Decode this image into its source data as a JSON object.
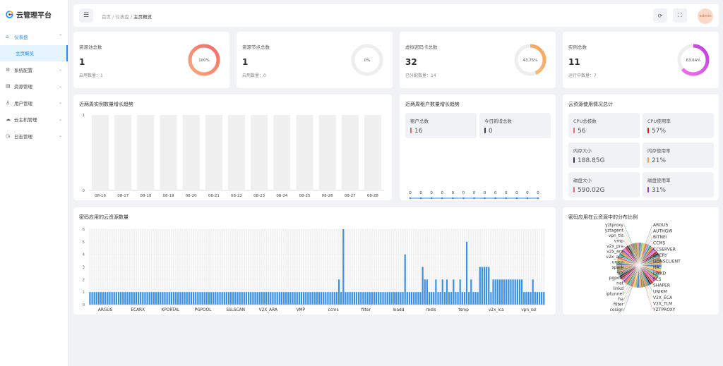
{
  "app": {
    "title": "云管理平台"
  },
  "sidebar": {
    "items": [
      {
        "label": "仪表盘",
        "icon": "home-icon",
        "active": true,
        "arrow": "^"
      },
      {
        "label": "主页概览",
        "sub": true
      },
      {
        "label": "系统配置",
        "icon": "gear-icon",
        "arrow": "v"
      },
      {
        "label": "资源管理",
        "icon": "document-icon",
        "arrow": "v"
      },
      {
        "label": "用户管理",
        "icon": "users-icon",
        "arrow": "v"
      },
      {
        "label": "云主机管理",
        "icon": "cloud-icon",
        "arrow": "v"
      },
      {
        "label": "日志管理",
        "icon": "log-icon",
        "arrow": "v"
      }
    ]
  },
  "header": {
    "breadcrumb": [
      "首页",
      "仪表盘",
      "主页概览"
    ],
    "user": "admin"
  },
  "stats": [
    {
      "title": "资源池总数",
      "value": "1",
      "sub": "启用数量：1",
      "percent": 100,
      "label": "100%",
      "color": "#f46a6a",
      "color2": "#f8aa7a"
    },
    {
      "title": "资源节点总数",
      "value": "1",
      "sub": "启用数量：0",
      "percent": 0,
      "label": "0%",
      "color": "#999",
      "color2": "#999"
    },
    {
      "title": "虚拟密码卡总数",
      "value": "32",
      "sub": "已分配数量：14",
      "percent": 43.75,
      "label": "43.75%",
      "color": "#f3a65c",
      "color2": "#f7c48e"
    },
    {
      "title": "实例总数",
      "value": "11",
      "sub": "运行中数量：7",
      "percent": 63.64,
      "label": "63.64%",
      "color": "#c03ce0",
      "color2": "#f176e8"
    }
  ],
  "instance_chart": {
    "title": "近两周实例数量增长趋势"
  },
  "tenant": {
    "title": "近两周租户数量增长趋势",
    "tiles": [
      {
        "label": "租户总数",
        "value": "16",
        "color": "#e06b6b"
      },
      {
        "label": "今日新增总数",
        "value": "0",
        "color": "#333a4d"
      }
    ]
  },
  "usage": {
    "title": "云资源使用情况总计",
    "tiles": [
      {
        "label": "CPU总核数",
        "value": "56",
        "color": "#e06b6b"
      },
      {
        "label": "CPU使用率",
        "value": "57%",
        "color": "#e8101a"
      },
      {
        "label": "内存大小",
        "value": "188.85G",
        "color": "#333a4d"
      },
      {
        "label": "内存使用率",
        "value": "21%",
        "color": "#f5a623"
      },
      {
        "label": "磁盘大小",
        "value": "590.02G",
        "color": "#e06b6b"
      },
      {
        "label": "磁盘使用率",
        "value": "31%",
        "color": "#9b30d9"
      }
    ]
  },
  "app_chart": {
    "title": "密码应用的云资源数量"
  },
  "pie": {
    "title": "密码应用在云资源中的分布比例"
  },
  "chart_data": [
    {
      "type": "bar",
      "title": "近两周实例数量增长趋势",
      "categories": [
        "08-16",
        "08-17",
        "08-18",
        "08-19",
        "08-20",
        "08-21",
        "08-22",
        "08-23",
        "08-24",
        "08-25",
        "08-26",
        "08-27",
        "08-28"
      ],
      "values": [
        0,
        0,
        0,
        0,
        0,
        0,
        0,
        0,
        0,
        0,
        0,
        0,
        0
      ],
      "ylim": [
        0,
        1
      ],
      "yticks": [
        "0",
        "1"
      ]
    },
    {
      "type": "line",
      "title": "近两周租户数量增长趋势",
      "values": [
        0,
        0,
        0,
        0,
        0,
        0,
        0,
        0,
        0,
        0,
        0,
        0,
        0
      ]
    },
    {
      "type": "bar",
      "title": "密码应用的云资源数量",
      "ylim": [
        0,
        6
      ],
      "yticks": [
        "0",
        "1",
        "2",
        "3",
        "4",
        "5",
        "6"
      ],
      "xticklabels": [
        "ARGUS",
        "ECARX",
        "KPORTAL",
        "PGPOOL",
        "SSLSCAN",
        "V2X_ARA",
        "VMP",
        "ccms",
        "filter",
        "loadd",
        "redis",
        "tsmp",
        "v2x_ica",
        "vpn_ssl"
      ],
      "values": [
        1,
        1,
        1,
        1,
        1,
        1,
        1,
        1,
        1,
        1,
        1,
        1,
        1,
        1,
        1,
        1,
        1,
        1,
        1,
        1,
        1,
        1,
        1,
        1,
        1,
        1,
        1,
        1,
        1,
        1,
        1,
        1,
        1,
        1,
        1,
        1,
        1,
        1,
        1,
        1,
        1,
        1,
        1,
        1,
        1,
        1,
        1,
        1,
        1,
        1,
        1,
        1,
        1,
        1,
        1,
        1,
        1,
        1,
        1,
        1,
        1,
        1,
        1,
        1,
        1,
        1,
        1,
        1,
        1,
        1,
        1,
        1,
        1,
        1,
        1,
        1,
        1,
        1,
        1,
        1,
        1,
        1,
        1,
        1,
        1,
        1,
        1,
        1,
        1,
        1,
        1,
        1,
        1,
        1,
        1,
        1,
        1,
        1,
        1,
        1,
        1,
        1,
        1,
        1,
        1,
        1,
        1,
        1,
        1,
        1,
        1,
        1,
        1,
        2,
        1,
        6,
        1,
        1,
        1,
        1,
        1,
        1,
        1,
        1,
        1,
        1,
        1,
        1,
        1,
        1,
        1,
        1,
        1,
        1,
        1,
        1,
        1,
        1,
        1,
        1,
        1,
        1,
        1,
        4,
        1,
        1,
        1,
        1,
        1,
        1,
        1,
        3,
        2,
        2,
        1,
        1,
        1,
        2,
        1,
        1,
        2,
        1,
        2,
        1,
        1,
        2,
        1,
        1,
        2,
        1,
        1,
        5,
        1,
        2,
        1,
        1,
        1,
        3,
        3,
        3,
        3,
        3,
        1,
        2,
        2,
        2,
        2,
        2,
        2,
        2,
        2,
        2,
        2,
        2,
        2,
        2,
        2,
        1,
        1,
        1,
        1,
        2,
        1,
        1,
        1,
        1,
        1
      ]
    },
    {
      "type": "pie",
      "title": "密码应用在云资源中的分布比例",
      "labels": [
        "yztproxy",
        "yztagent",
        "vpn_tls",
        "vmp",
        "v2x_pra",
        "v2x_era",
        "v2x_aca",
        "unica",
        "spark",
        "scs",
        "pgpool",
        "nat",
        "linkd",
        "iptunnel",
        "ha",
        "filter",
        "cosign",
        "YZTPROXY",
        "V2X_TLM",
        "V2X_ECA",
        "UNIKM",
        "SHAPER",
        "PCS",
        "LINKD",
        "HA",
        "DDNSCLIENT",
        "CHERY",
        "CCSERVER",
        "CCMS",
        "BITNEI",
        "AUTHGW",
        "ARGUS"
      ]
    }
  ]
}
